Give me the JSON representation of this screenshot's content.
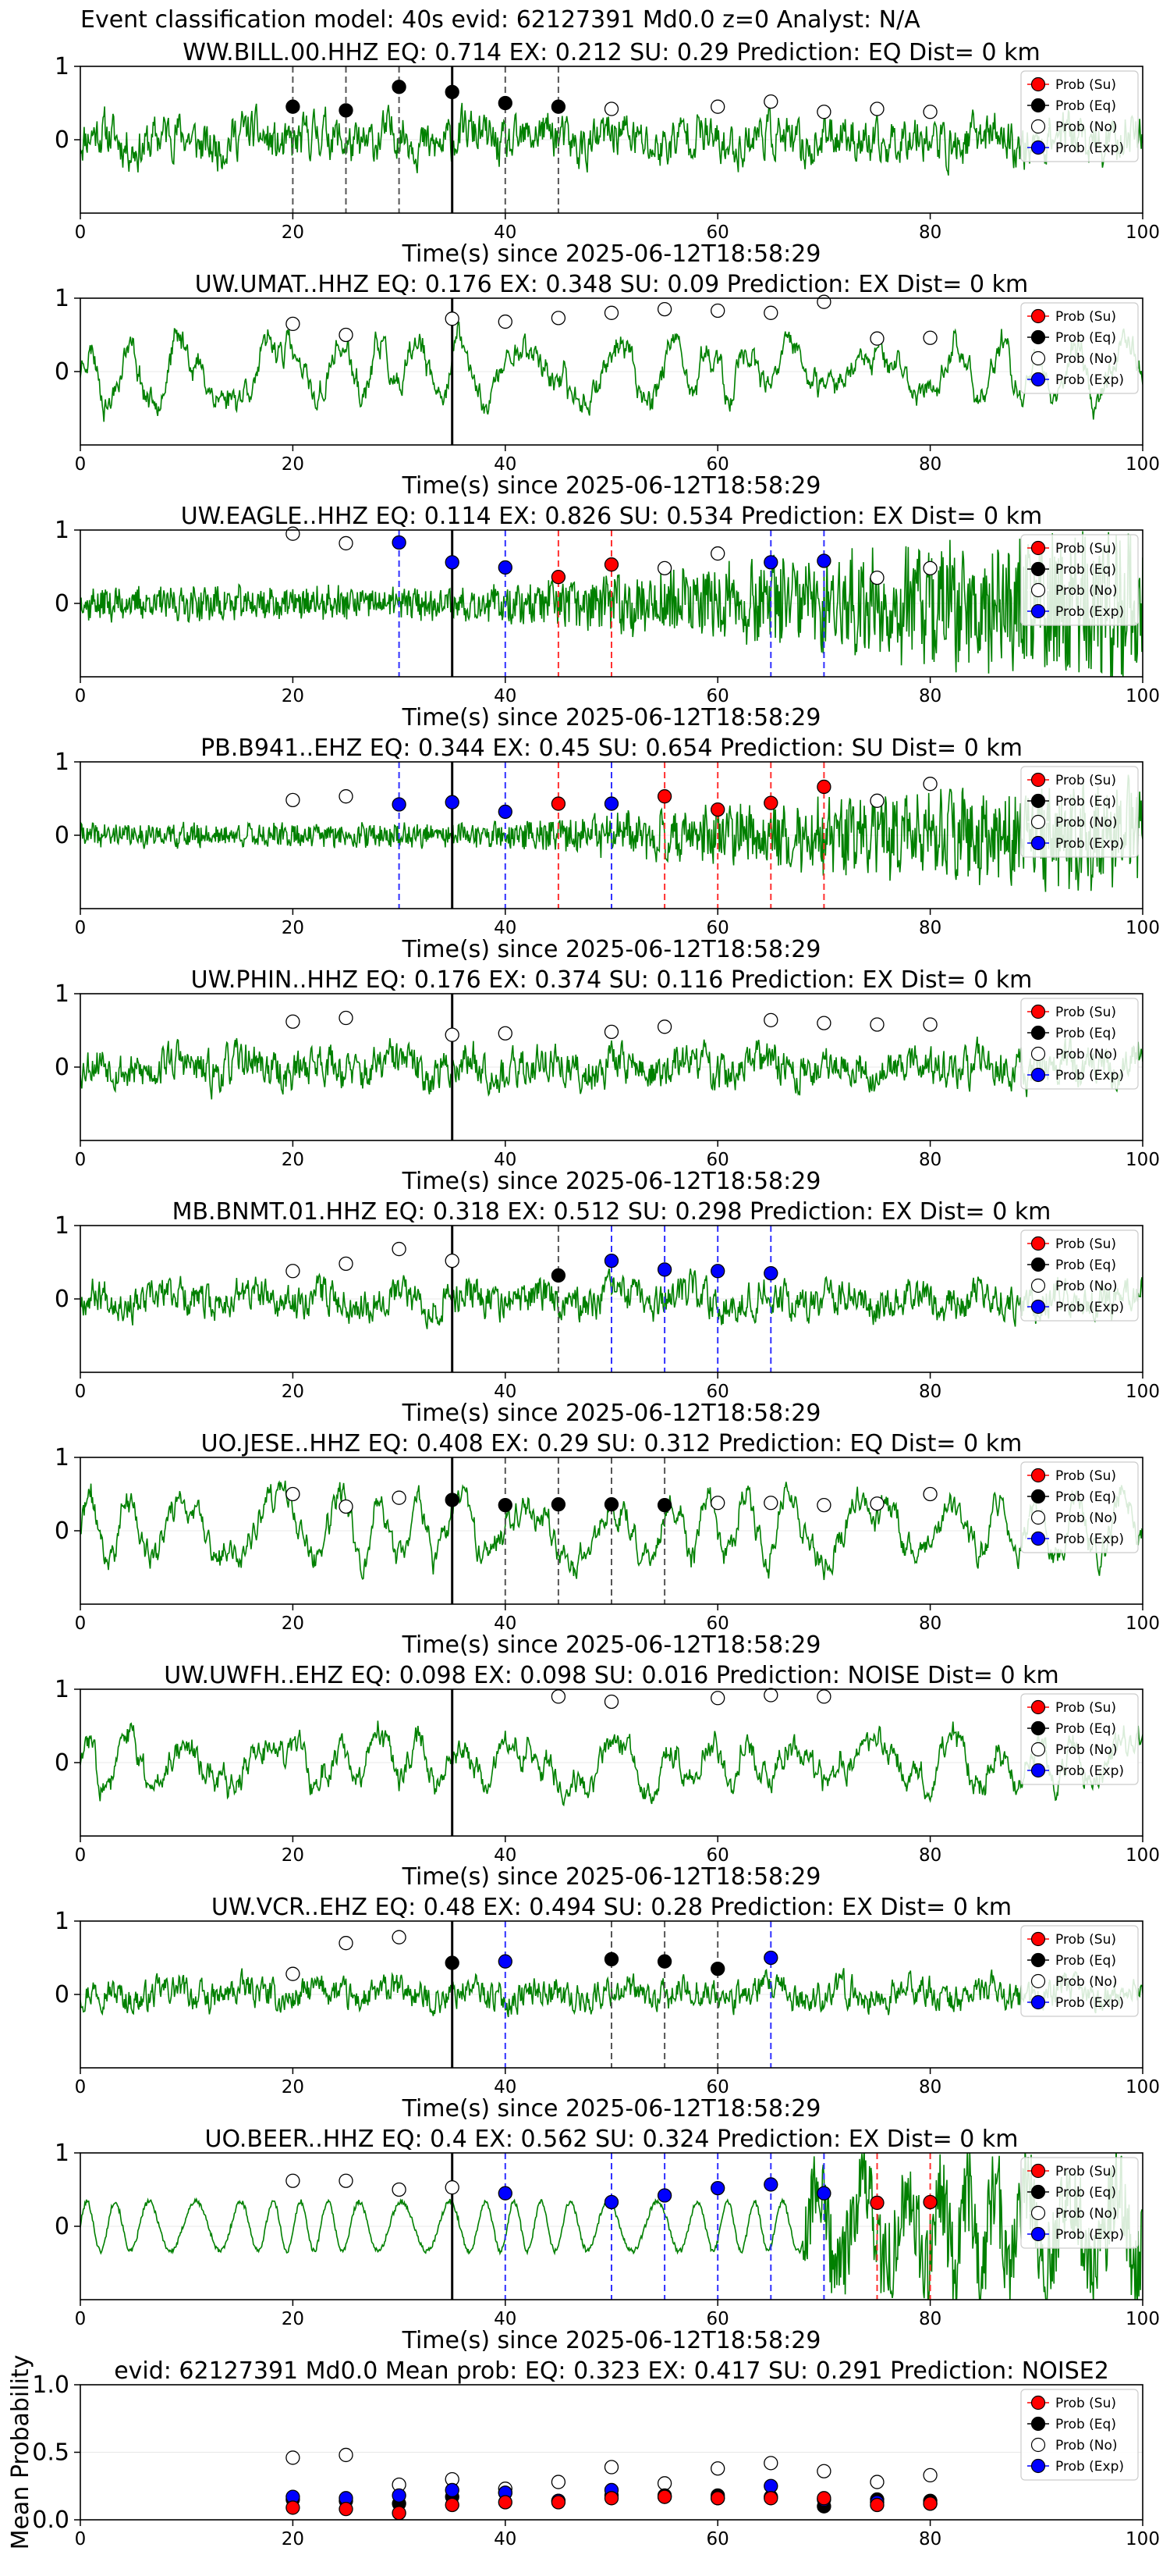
{
  "figure_title": "Event classification model: 40s evid: 62127391 Md0.0 z=0 Analyst: N/A",
  "xlabel": "Time(s) since 2025-06-12T18:58:29",
  "legend": [
    "Prob (Su)",
    "Prob (Eq)",
    "Prob (No)",
    "Prob (Exp)"
  ],
  "colors": {
    "su": "#ff0000",
    "eq": "#000000",
    "no": "#ffffff",
    "exp": "#0000ff",
    "trace": "#008000",
    "exp_line": "#3030ff",
    "su_line": "#ff3030",
    "eq_line": "#555555"
  },
  "chart_data": [
    {
      "type": "line",
      "title": "WW.BILL.00.HHZ   EQ: 0.714  EX: 0.212  SU: 0.29   Prediction: EQ    Dist= 0 km",
      "xlim": [
        0,
        100
      ],
      "ylim": [
        -1,
        1
      ],
      "xticks": [
        0,
        20,
        40,
        60,
        80,
        100
      ],
      "yticks": [
        0,
        1
      ],
      "event_line": 35,
      "trace": {
        "seed": 11,
        "style": "noise",
        "amp": 0.45
      },
      "points": {
        "no": [
          [
            50,
            0.42
          ],
          [
            60,
            0.45
          ],
          [
            65,
            0.52
          ],
          [
            70,
            0.38
          ],
          [
            75,
            0.42
          ],
          [
            80,
            0.38
          ]
        ],
        "eq": [
          [
            20,
            0.45
          ],
          [
            25,
            0.4
          ],
          [
            30,
            0.72
          ],
          [
            35,
            0.65
          ],
          [
            40,
            0.5
          ],
          [
            45,
            0.45
          ]
        ],
        "su": [],
        "exp": []
      },
      "vlines": {
        "eq": [
          20,
          25,
          30,
          40,
          45
        ],
        "su": [],
        "exp": []
      }
    },
    {
      "type": "line",
      "title": "UW.UMAT..HHZ   EQ: 0.176  EX: 0.348  SU: 0.09   Prediction: EX    Dist= 0 km",
      "xlim": [
        0,
        100
      ],
      "ylim": [
        -1,
        1
      ],
      "xticks": [
        0,
        20,
        40,
        60,
        80,
        100
      ],
      "yticks": [
        0,
        1
      ],
      "event_line": 35,
      "trace": {
        "seed": 23,
        "style": "wave",
        "amp": 0.4
      },
      "points": {
        "no": [
          [
            20,
            0.65
          ],
          [
            25,
            0.5
          ],
          [
            35,
            0.72
          ],
          [
            40,
            0.68
          ],
          [
            45,
            0.73
          ],
          [
            50,
            0.8
          ],
          [
            55,
            0.85
          ],
          [
            60,
            0.83
          ],
          [
            65,
            0.8
          ],
          [
            70,
            0.95
          ],
          [
            75,
            0.45
          ],
          [
            80,
            0.46
          ]
        ],
        "eq": [],
        "su": [],
        "exp": []
      },
      "vlines": {
        "eq": [],
        "su": [],
        "exp": []
      }
    },
    {
      "type": "line",
      "title": "UW.EAGLE..HHZ   EQ: 0.114  EX: 0.826  SU: 0.534   Prediction: EX    Dist= 0 km",
      "xlim": [
        0,
        100
      ],
      "ylim": [
        -1,
        1
      ],
      "xticks": [
        0,
        20,
        40,
        60,
        80,
        100
      ],
      "yticks": [
        0,
        1
      ],
      "event_line": 35,
      "trace": {
        "seed": 37,
        "style": "burst",
        "amp": 0.25
      },
      "points": {
        "no": [
          [
            20,
            0.95
          ],
          [
            25,
            0.82
          ],
          [
            55,
            0.48
          ],
          [
            60,
            0.68
          ],
          [
            75,
            0.35
          ],
          [
            80,
            0.48
          ]
        ],
        "eq": [],
        "su": [
          [
            45,
            0.36
          ],
          [
            50,
            0.53
          ]
        ],
        "exp": [
          [
            30,
            0.83
          ],
          [
            35,
            0.56
          ],
          [
            40,
            0.49
          ],
          [
            65,
            0.56
          ],
          [
            70,
            0.58
          ]
        ]
      },
      "vlines": {
        "eq": [],
        "su": [
          45,
          50
        ],
        "exp": [
          30,
          40,
          65,
          70
        ]
      }
    },
    {
      "type": "line",
      "title": "PB.B941..EHZ   EQ: 0.344  EX: 0.45  SU: 0.654   Prediction: SU    Dist= 0 km",
      "xlim": [
        0,
        100
      ],
      "ylim": [
        -1,
        1
      ],
      "xticks": [
        0,
        20,
        40,
        60,
        80,
        100
      ],
      "yticks": [
        0,
        1
      ],
      "event_line": 35,
      "trace": {
        "seed": 41,
        "style": "burst",
        "amp": 0.18
      },
      "points": {
        "no": [
          [
            20,
            0.48
          ],
          [
            25,
            0.53
          ],
          [
            75,
            0.47
          ],
          [
            80,
            0.7
          ]
        ],
        "eq": [],
        "su": [
          [
            45,
            0.43
          ],
          [
            55,
            0.53
          ],
          [
            60,
            0.35
          ],
          [
            65,
            0.44
          ],
          [
            70,
            0.66
          ]
        ],
        "exp": [
          [
            30,
            0.42
          ],
          [
            35,
            0.45
          ],
          [
            40,
            0.32
          ],
          [
            50,
            0.43
          ]
        ]
      },
      "vlines": {
        "eq": [],
        "su": [
          45,
          55,
          60,
          65,
          70
        ],
        "exp": [
          30,
          40,
          50
        ]
      }
    },
    {
      "type": "line",
      "title": "UW.PHIN..HHZ   EQ: 0.176  EX: 0.374  SU: 0.116   Prediction: EX    Dist= 0 km",
      "xlim": [
        0,
        100
      ],
      "ylim": [
        -1,
        1
      ],
      "xticks": [
        0,
        20,
        40,
        60,
        80,
        100
      ],
      "yticks": [
        0,
        1
      ],
      "event_line": 35,
      "trace": {
        "seed": 53,
        "style": "noise",
        "amp": 0.4
      },
      "points": {
        "no": [
          [
            20,
            0.62
          ],
          [
            25,
            0.67
          ],
          [
            35,
            0.44
          ],
          [
            40,
            0.46
          ],
          [
            50,
            0.48
          ],
          [
            55,
            0.55
          ],
          [
            65,
            0.64
          ],
          [
            70,
            0.6
          ],
          [
            75,
            0.58
          ],
          [
            80,
            0.58
          ]
        ],
        "eq": [],
        "su": [],
        "exp": []
      },
      "vlines": {
        "eq": [],
        "su": [],
        "exp": []
      }
    },
    {
      "type": "line",
      "title": "MB.BNMT.01.HHZ   EQ: 0.318  EX: 0.512  SU: 0.298   Prediction: EX    Dist= 0 km",
      "xlim": [
        0,
        100
      ],
      "ylim": [
        -1,
        1
      ],
      "xticks": [
        0,
        20,
        40,
        60,
        80,
        100
      ],
      "yticks": [
        0,
        1
      ],
      "event_line": 35,
      "trace": {
        "seed": 67,
        "style": "noise",
        "amp": 0.35
      },
      "points": {
        "no": [
          [
            20,
            0.38
          ],
          [
            25,
            0.48
          ],
          [
            30,
            0.68
          ],
          [
            35,
            0.52
          ]
        ],
        "eq": [
          [
            45,
            0.32
          ]
        ],
        "su": [],
        "exp": [
          [
            50,
            0.52
          ],
          [
            55,
            0.4
          ],
          [
            60,
            0.38
          ],
          [
            65,
            0.35
          ]
        ]
      },
      "vlines": {
        "eq": [
          45
        ],
        "su": [],
        "exp": [
          50,
          55,
          60,
          65
        ]
      }
    },
    {
      "type": "line",
      "title": "UO.JESE..HHZ   EQ: 0.408  EX: 0.29  SU: 0.312   Prediction: EQ    Dist= 0 km",
      "xlim": [
        0,
        100
      ],
      "ylim": [
        -1,
        1
      ],
      "xticks": [
        0,
        20,
        40,
        60,
        80,
        100
      ],
      "yticks": [
        0,
        1
      ],
      "event_line": 35,
      "trace": {
        "seed": 71,
        "style": "wave",
        "amp": 0.45
      },
      "points": {
        "no": [
          [
            20,
            0.5
          ],
          [
            25,
            0.33
          ],
          [
            30,
            0.45
          ],
          [
            60,
            0.38
          ],
          [
            65,
            0.38
          ],
          [
            70,
            0.35
          ],
          [
            75,
            0.37
          ],
          [
            80,
            0.5
          ]
        ],
        "eq": [
          [
            35,
            0.42
          ],
          [
            40,
            0.35
          ],
          [
            45,
            0.36
          ],
          [
            50,
            0.36
          ],
          [
            55,
            0.35
          ]
        ],
        "su": [],
        "exp": []
      },
      "vlines": {
        "eq": [
          40,
          45,
          50,
          55
        ],
        "su": [],
        "exp": []
      }
    },
    {
      "type": "line",
      "title": "UW.UWFH..EHZ   EQ: 0.098  EX: 0.098  SU: 0.016   Prediction: NOISE    Dist= 0 km",
      "xlim": [
        0,
        100
      ],
      "ylim": [
        -1,
        1
      ],
      "xticks": [
        0,
        20,
        40,
        60,
        80,
        100
      ],
      "yticks": [
        0,
        1
      ],
      "event_line": 35,
      "trace": {
        "seed": 83,
        "style": "wave",
        "amp": 0.3
      },
      "points": {
        "no": [
          [
            45,
            0.9
          ],
          [
            50,
            0.83
          ],
          [
            60,
            0.88
          ],
          [
            65,
            0.92
          ],
          [
            70,
            0.9
          ]
        ],
        "eq": [],
        "su": [],
        "exp": []
      },
      "vlines": {
        "eq": [],
        "su": [],
        "exp": []
      }
    },
    {
      "type": "line",
      "title": "UW.VCR..EHZ   EQ: 0.48  EX: 0.494  SU: 0.28   Prediction: EX    Dist= 0 km",
      "xlim": [
        0,
        100
      ],
      "ylim": [
        -1,
        1
      ],
      "xticks": [
        0,
        20,
        40,
        60,
        80,
        100
      ],
      "yticks": [
        0,
        1
      ],
      "event_line": 35,
      "trace": {
        "seed": 97,
        "style": "noise",
        "amp": 0.3
      },
      "points": {
        "no": [
          [
            20,
            0.28
          ],
          [
            25,
            0.7
          ],
          [
            30,
            0.78
          ]
        ],
        "eq": [
          [
            35,
            0.43
          ],
          [
            50,
            0.48
          ],
          [
            55,
            0.45
          ],
          [
            60,
            0.35
          ]
        ],
        "su": [],
        "exp": [
          [
            40,
            0.45
          ],
          [
            65,
            0.5
          ]
        ]
      },
      "vlines": {
        "eq": [
          50,
          55,
          60
        ],
        "su": [],
        "exp": [
          40,
          65
        ]
      }
    },
    {
      "type": "line",
      "title": "UO.BEER..HHZ   EQ: 0.4  EX: 0.562  SU: 0.324   Prediction: EX    Dist= 0 km",
      "xlim": [
        0,
        100
      ],
      "ylim": [
        -1,
        1
      ],
      "xticks": [
        0,
        20,
        40,
        60,
        80,
        100
      ],
      "yticks": [
        0,
        1
      ],
      "event_line": 35,
      "trace": {
        "seed": 101,
        "style": "sine",
        "amp": 0.4
      },
      "points": {
        "no": [
          [
            20,
            0.62
          ],
          [
            25,
            0.62
          ],
          [
            30,
            0.5
          ],
          [
            35,
            0.53
          ]
        ],
        "eq": [],
        "su": [
          [
            75,
            0.32
          ],
          [
            80,
            0.33
          ]
        ],
        "exp": [
          [
            40,
            0.45
          ],
          [
            50,
            0.33
          ],
          [
            55,
            0.42
          ],
          [
            60,
            0.52
          ],
          [
            65,
            0.57
          ],
          [
            70,
            0.45
          ]
        ]
      },
      "vlines": {
        "eq": [],
        "su": [
          75,
          80
        ],
        "exp": [
          40,
          50,
          55,
          60,
          65,
          70
        ]
      }
    },
    {
      "type": "scatter",
      "title": "evid: 62127391   Md0.0    Mean prob:    EQ: 0.323  EX: 0.417  SU: 0.291    Prediction: NOISE2",
      "ylabel": "Mean Probability",
      "xlim": [
        0,
        100
      ],
      "ylim": [
        0,
        1
      ],
      "xticks": [
        0,
        20,
        40,
        60,
        80,
        100
      ],
      "yticks": [
        0.0,
        0.5,
        1.0
      ],
      "ytick_labels": [
        "0.0",
        "0.5",
        "1.0"
      ],
      "points": {
        "no": [
          [
            20,
            0.46
          ],
          [
            25,
            0.48
          ],
          [
            30,
            0.26
          ],
          [
            35,
            0.3
          ],
          [
            40,
            0.23
          ],
          [
            45,
            0.28
          ],
          [
            50,
            0.39
          ],
          [
            55,
            0.27
          ],
          [
            60,
            0.38
          ],
          [
            65,
            0.42
          ],
          [
            70,
            0.36
          ],
          [
            75,
            0.28
          ],
          [
            80,
            0.33
          ]
        ],
        "eq": [
          [
            20,
            0.15
          ],
          [
            25,
            0.14
          ],
          [
            30,
            0.12
          ],
          [
            35,
            0.17
          ],
          [
            40,
            0.2
          ],
          [
            45,
            0.14
          ],
          [
            50,
            0.18
          ],
          [
            55,
            0.18
          ],
          [
            60,
            0.18
          ],
          [
            65,
            0.17
          ],
          [
            70,
            0.1
          ],
          [
            75,
            0.15
          ],
          [
            80,
            0.14
          ]
        ],
        "exp": [
          [
            20,
            0.17
          ],
          [
            25,
            0.16
          ],
          [
            30,
            0.18
          ],
          [
            35,
            0.22
          ],
          [
            40,
            0.2
          ],
          [
            45,
            0.14
          ],
          [
            50,
            0.22
          ],
          [
            55,
            0.17
          ],
          [
            60,
            0.16
          ],
          [
            65,
            0.25
          ],
          [
            70,
            0.15
          ],
          [
            75,
            0.13
          ],
          [
            80,
            0.12
          ]
        ],
        "su": [
          [
            20,
            0.09
          ],
          [
            25,
            0.08
          ],
          [
            30,
            0.05
          ],
          [
            35,
            0.11
          ],
          [
            40,
            0.13
          ],
          [
            45,
            0.13
          ],
          [
            50,
            0.16
          ],
          [
            55,
            0.17
          ],
          [
            60,
            0.16
          ],
          [
            65,
            0.16
          ],
          [
            70,
            0.16
          ],
          [
            75,
            0.11
          ],
          [
            80,
            0.12
          ]
        ]
      },
      "vlines": {
        "eq": [],
        "su": [],
        "exp": []
      }
    }
  ]
}
